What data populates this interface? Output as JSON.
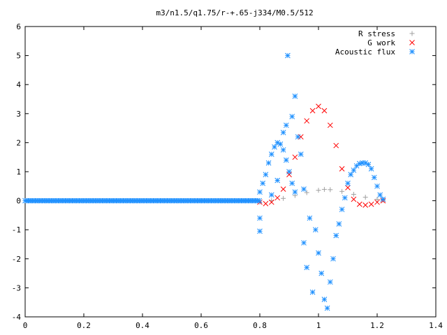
{
  "chart_data": {
    "type": "scatter",
    "title": "m3/n1.5/q1.75/r-+.65-j334/M0.5/512",
    "xlabel": "",
    "ylabel": "",
    "xlim": [
      0,
      1.4
    ],
    "ylim": [
      -4,
      6
    ],
    "x_ticks": [
      "0",
      "0.2",
      "0.4",
      "0.6",
      "0.8",
      "1",
      "1.2",
      "1.4"
    ],
    "y_ticks": [
      "-4",
      "-3",
      "-2",
      "-1",
      "0",
      "1",
      "2",
      "3",
      "4",
      "5",
      "6"
    ],
    "grid": false,
    "legend_position": "top-right",
    "series": [
      {
        "name": "R stress",
        "marker": "plus",
        "color": "#a0a0a0",
        "points": [
          [
            0.8,
            -0.05
          ],
          [
            0.84,
            0.0
          ],
          [
            0.88,
            0.08
          ],
          [
            0.92,
            0.18
          ],
          [
            0.96,
            0.28
          ],
          [
            1.0,
            0.36
          ],
          [
            1.02,
            0.39
          ],
          [
            1.04,
            0.38
          ],
          [
            1.08,
            0.32
          ],
          [
            1.12,
            0.22
          ],
          [
            1.16,
            0.12
          ],
          [
            1.2,
            0.05
          ],
          [
            1.22,
            0.02
          ]
        ]
      },
      {
        "name": "G work",
        "marker": "cross",
        "color": "#ff0000",
        "points": [
          [
            0.8,
            -0.05
          ],
          [
            0.82,
            -0.1
          ],
          [
            0.84,
            -0.05
          ],
          [
            0.86,
            0.1
          ],
          [
            0.88,
            0.4
          ],
          [
            0.9,
            0.9
          ],
          [
            0.92,
            1.5
          ],
          [
            0.94,
            2.2
          ],
          [
            0.96,
            2.75
          ],
          [
            0.98,
            3.1
          ],
          [
            1.0,
            3.25
          ],
          [
            1.02,
            3.1
          ],
          [
            1.04,
            2.6
          ],
          [
            1.06,
            1.9
          ],
          [
            1.08,
            1.1
          ],
          [
            1.1,
            0.45
          ],
          [
            1.12,
            0.05
          ],
          [
            1.14,
            -0.12
          ],
          [
            1.16,
            -0.15
          ],
          [
            1.18,
            -0.12
          ],
          [
            1.2,
            -0.05
          ],
          [
            1.22,
            0.0
          ]
        ]
      },
      {
        "name": "Acoustic flux",
        "marker": "star",
        "color": "#1e90ff",
        "points": [
          [
            0.8,
            0.3
          ],
          [
            0.81,
            0.6
          ],
          [
            0.82,
            0.9
          ],
          [
            0.83,
            1.3
          ],
          [
            0.84,
            1.6
          ],
          [
            0.85,
            1.85
          ],
          [
            0.86,
            2.0
          ],
          [
            0.87,
            1.95
          ],
          [
            0.88,
            1.75
          ],
          [
            0.89,
            1.4
          ],
          [
            0.9,
            1.0
          ],
          [
            0.91,
            0.6
          ],
          [
            0.92,
            0.3
          ],
          [
            0.8,
            -0.6
          ],
          [
            0.8,
            -1.05
          ],
          [
            0.84,
            0.2
          ],
          [
            0.86,
            0.7
          ],
          [
            0.88,
            2.35
          ],
          [
            0.89,
            2.6
          ],
          [
            0.895,
            5.0
          ],
          [
            0.91,
            2.9
          ],
          [
            0.92,
            3.6
          ],
          [
            0.93,
            2.2
          ],
          [
            0.94,
            1.6
          ],
          [
            0.95,
            0.4
          ],
          [
            0.95,
            -1.45
          ],
          [
            0.96,
            -2.3
          ],
          [
            0.97,
            -0.6
          ],
          [
            0.98,
            -3.15
          ],
          [
            0.99,
            -1.0
          ],
          [
            1.0,
            -1.8
          ],
          [
            1.01,
            -2.5
          ],
          [
            1.02,
            -3.4
          ],
          [
            1.03,
            -3.7
          ],
          [
            1.04,
            -2.8
          ],
          [
            1.05,
            -2.0
          ],
          [
            1.06,
            -1.2
          ],
          [
            1.07,
            -0.8
          ],
          [
            1.08,
            -0.3
          ],
          [
            1.09,
            0.1
          ],
          [
            1.1,
            0.6
          ],
          [
            1.11,
            0.9
          ],
          [
            1.12,
            1.05
          ],
          [
            1.13,
            1.2
          ],
          [
            1.14,
            1.28
          ],
          [
            1.15,
            1.3
          ],
          [
            1.16,
            1.3
          ],
          [
            1.17,
            1.25
          ],
          [
            1.18,
            1.1
          ],
          [
            1.19,
            0.8
          ],
          [
            1.2,
            0.5
          ],
          [
            1.21,
            0.2
          ],
          [
            1.22,
            0.05
          ]
        ]
      }
    ]
  }
}
